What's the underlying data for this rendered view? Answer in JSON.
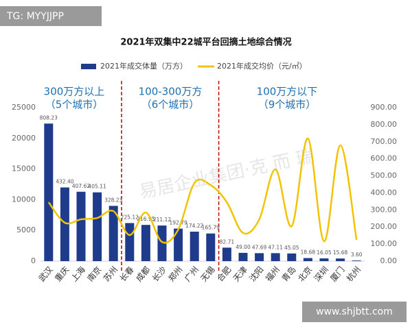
{
  "chart_data": {
    "type": "combo",
    "title": "2021年双集中22城平台回摘土地综合情况",
    "categories": [
      "武汉",
      "重庆",
      "上海",
      "南京",
      "苏州",
      "长春",
      "成都",
      "长沙",
      "郑州",
      "广州",
      "无锡",
      "合肥",
      "天津",
      "沈阳",
      "福州",
      "青岛",
      "北京",
      "深圳",
      "厦门",
      "杭州"
    ],
    "series": [
      {
        "name": "2021年成交体量（万方）",
        "type": "bar",
        "color": "#1f3b8c",
        "values": [
          22400,
          12000,
          11300,
          11200,
          9000,
          6200,
          5900,
          5800,
          5300,
          4800,
          4500,
          2200,
          1350,
          1300,
          1300,
          1250,
          500,
          450,
          430,
          100
        ],
        "bar_labels": [
          "808.23",
          "432.40",
          "407.62",
          "405.11",
          "328.23",
          "225.12",
          "216.95",
          "211.12",
          "192.79",
          "174.22",
          "165.79",
          "82.71",
          "49.00",
          "47.69",
          "47.11",
          "45.05",
          "18.68",
          "16.05",
          "15.68",
          "3.60"
        ]
      },
      {
        "name": "2021年成交均价（元/㎡）",
        "type": "line",
        "axis": "y2",
        "color": "#f2c300",
        "values": [
          345,
          225,
          245,
          253,
          293,
          153,
          285,
          112,
          185,
          458,
          446,
          345,
          165,
          245,
          538,
          205,
          719,
          116,
          679,
          125
        ]
      }
    ],
    "ylim": [
      0,
      25000
    ],
    "yticks": [
      0,
      5000,
      10000,
      15000,
      20000,
      25000
    ],
    "y2lim": [
      0,
      900
    ],
    "y2ticks": [
      {
        "value": 0,
        "label": "0.00"
      },
      {
        "value": 100,
        "label": "100.00"
      },
      {
        "value": 200,
        "label": "200.00"
      },
      {
        "value": 300,
        "label": "300.00"
      },
      {
        "value": 400,
        "label": "400.00"
      },
      {
        "value": 500,
        "label": "500.00"
      },
      {
        "value": 600,
        "label": "600.00"
      },
      {
        "value": 700,
        "label": "700.00"
      },
      {
        "value": 800,
        "label": "800.00"
      },
      {
        "value": 900,
        "label": "900.00"
      }
    ],
    "groups": [
      {
        "lines": [
          "300万方以上",
          "（5个城市）"
        ]
      },
      {
        "lines": [
          "100-300万方",
          "（6个城市）"
        ]
      },
      {
        "lines": [
          "100万方以下",
          "（9个城市）"
        ]
      }
    ],
    "watermark": "易居企业集团·克 而 瑞",
    "badge": "TG: MYYJJPP",
    "site": "www.shjbtt.com"
  }
}
